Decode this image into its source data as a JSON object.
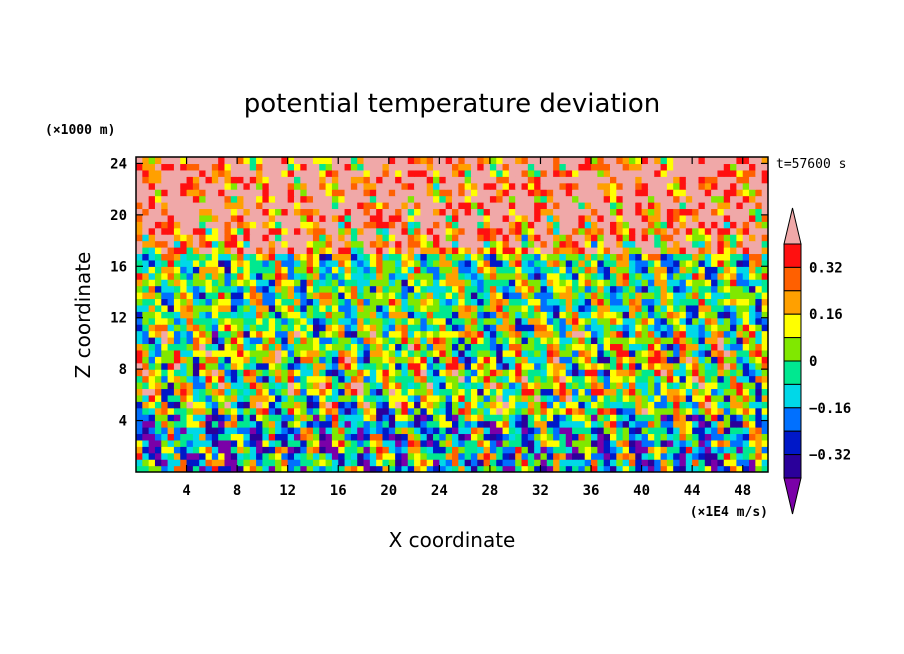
{
  "chart_data": {
    "type": "heatmap",
    "title": "potential temperature deviation",
    "xlabel": "X coordinate",
    "ylabel": "Z coordinate",
    "x_unit": "(×1E4 m/s)",
    "y_unit": "(×1000 m)",
    "time_label": "t=57600 s",
    "xlim": [
      0,
      50
    ],
    "ylim": [
      0,
      24.5
    ],
    "x_ticks": [
      4,
      8,
      12,
      16,
      20,
      24,
      28,
      32,
      36,
      40,
      44,
      48
    ],
    "y_ticks": [
      4,
      8,
      12,
      16,
      20,
      24
    ],
    "colorbar": {
      "labels": [
        {
          "value": 0.32,
          "text": "0.32"
        },
        {
          "value": 0.16,
          "text": "0.16"
        },
        {
          "value": 0,
          "text": "0"
        },
        {
          "value": -0.16,
          "text": "−0.16"
        },
        {
          "value": -0.32,
          "text": "−0.32"
        }
      ],
      "levels": [
        -0.4,
        -0.32,
        -0.24,
        -0.16,
        -0.08,
        0,
        0.08,
        0.16,
        0.24,
        0.32,
        0.4
      ],
      "colors": [
        "#7a00a8",
        "#2a009a",
        "#0018c8",
        "#0070ff",
        "#00d8e8",
        "#00e890",
        "#80e800",
        "#ffff00",
        "#ffa000",
        "#ff6000",
        "#ff1010",
        "#f0a8a8"
      ],
      "extend": "both"
    },
    "bands": [
      {
        "z": [
          0,
          4.5
        ],
        "value": -0.1
      },
      {
        "z": [
          4.5,
          11
        ],
        "value": 0.05
      },
      {
        "z": [
          11,
          17
        ],
        "value": 0.0
      },
      {
        "z": [
          17,
          19.5
        ],
        "value": 0.35
      },
      {
        "z": [
          19.5,
          24.5
        ],
        "value": 0.45
      }
    ]
  }
}
